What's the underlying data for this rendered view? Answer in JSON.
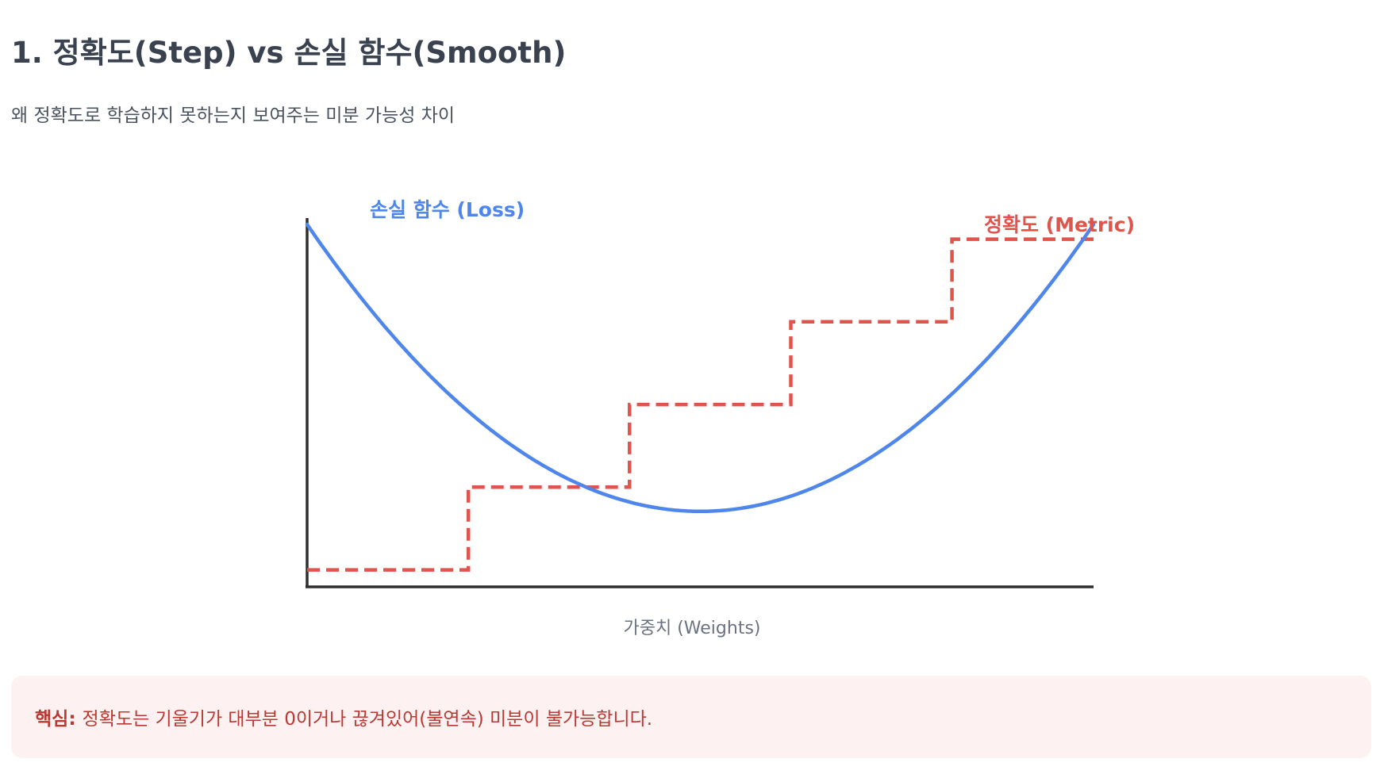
{
  "page": {
    "title": "1. 정확도(Step) vs 손실 함수(Smooth)",
    "subtitle": "왜 정확도로 학습하지 못하는지 보여주는 미분 가능성 차이"
  },
  "callout": {
    "label": "핵심:",
    "text": "정확도는 기울기가 대부분 0이거나 끊겨있어(불연속) 미분이 불가능합니다."
  },
  "colors": {
    "loss": "#4f86ec",
    "metric": "#e0544b",
    "axis": "#2f2f2f",
    "callout_bg": "#fdf1f1",
    "callout_text": "#b93a34"
  },
  "chart_data": {
    "type": "line",
    "xlabel": "가중치 (Weights)",
    "ylabel": "",
    "xlim": [
      0,
      100
    ],
    "ylim": [
      0,
      100
    ],
    "grid": false,
    "series": [
      {
        "name": "손실 함수 (Loss)",
        "style": "solid",
        "shape": "parabola",
        "x": [
          0,
          10,
          20,
          30,
          40,
          50,
          60,
          70,
          80,
          90,
          100
        ],
        "y": [
          96,
          72,
          52,
          37,
          27,
          20,
          23,
          30,
          43,
          62,
          96
        ]
      },
      {
        "name": "정확도 (Metric)",
        "style": "dashed",
        "shape": "step",
        "x": [
          0,
          20.5,
          20.5,
          41,
          41,
          61.5,
          61.5,
          82,
          82,
          100
        ],
        "y": [
          4.5,
          4.5,
          26.4,
          26.4,
          48.3,
          48.3,
          70.2,
          70.2,
          92.1,
          92.1
        ]
      }
    ]
  }
}
